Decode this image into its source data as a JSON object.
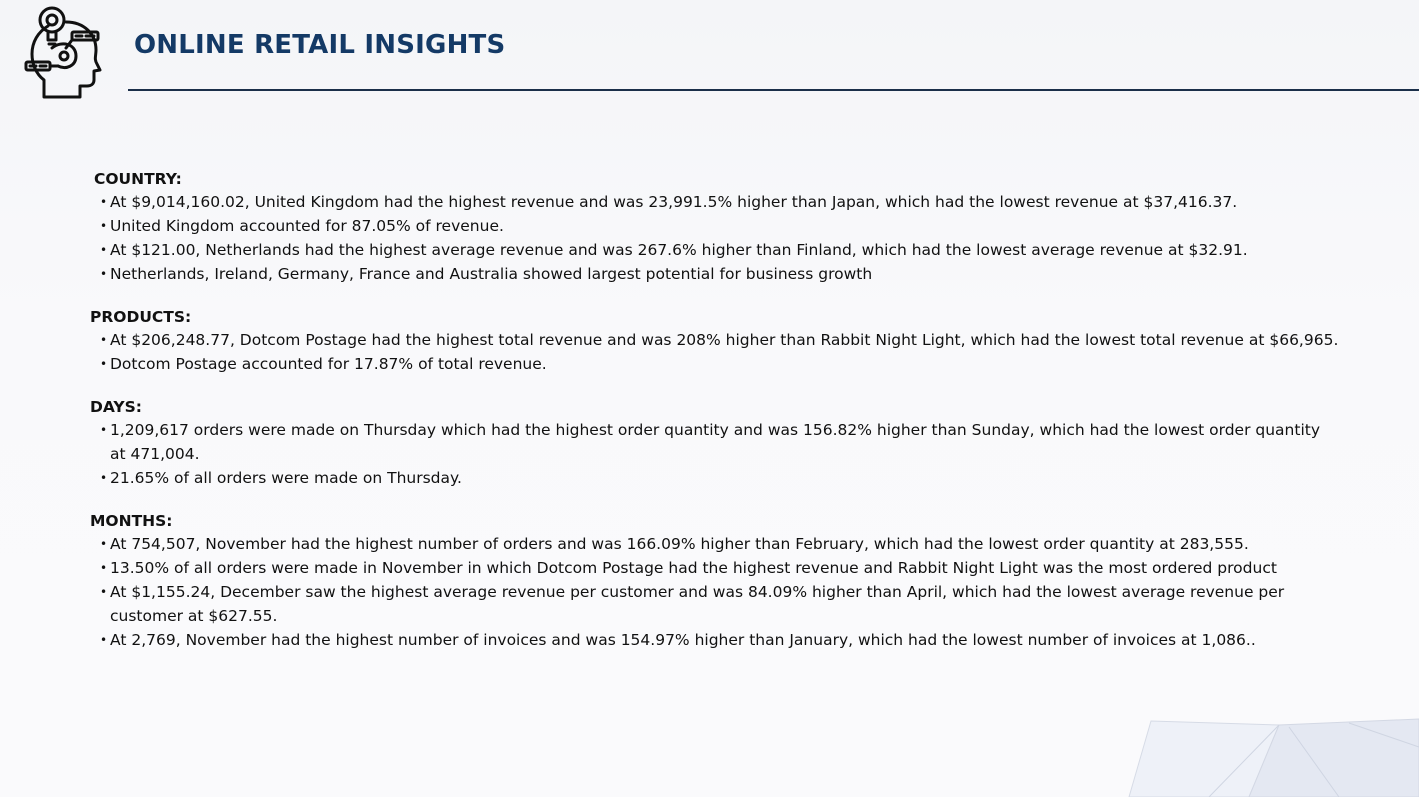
{
  "header": {
    "title": "ONLINE RETAIL INSIGHTS",
    "logo_icon": "brain-idea-icon",
    "title_color": "#143a66",
    "rule_color": "#1b2f4a"
  },
  "sections": [
    {
      "heading": "COUNTRY:",
      "items": [
        "At $9,014,160.02, United Kingdom had the highest revenue and was 23,991.5% higher than Japan, which had the lowest revenue at $37,416.37.",
        "United Kingdom accounted for 87.05% of revenue.",
        "At $121.00, Netherlands had the highest average revenue and was 267.6% higher than Finland, which had the lowest average revenue at $32.91.",
        "Netherlands, Ireland, Germany, France and Australia showed largest potential for business growth"
      ]
    },
    {
      "heading": "PRODUCTS:",
      "items": [
        "At $206,248.77, Dotcom Postage had the highest total revenue and was 208% higher than Rabbit Night Light, which had the lowest total revenue at $66,965.",
        "Dotcom Postage accounted for 17.87% of total revenue."
      ]
    },
    {
      "heading": "DAYS:",
      "items": [
        "1,209,617 orders were made on Thursday which had the highest order quantity and was 156.82% higher than Sunday, which had the lowest order quantity at 471,004.",
        "21.65% of  all orders were made on Thursday."
      ]
    },
    {
      "heading": "MONTHS:",
      "items": [
        "At 754,507, November had the highest number of orders and was 166.09% higher than February, which had the lowest order quantity at 283,555.",
        "13.50% of all orders were made in November in which Dotcom Postage had the highest revenue and Rabbit Night Light was the most ordered product",
        "At $1,155.24, December saw the highest average revenue per customer and was 84.09% higher than April, which had the lowest average revenue per customer at $627.55.",
        "At 2,769, November had the highest number of invoices and was 154.97% higher than January, which had the lowest number of invoices at 1,086.."
      ]
    }
  ]
}
